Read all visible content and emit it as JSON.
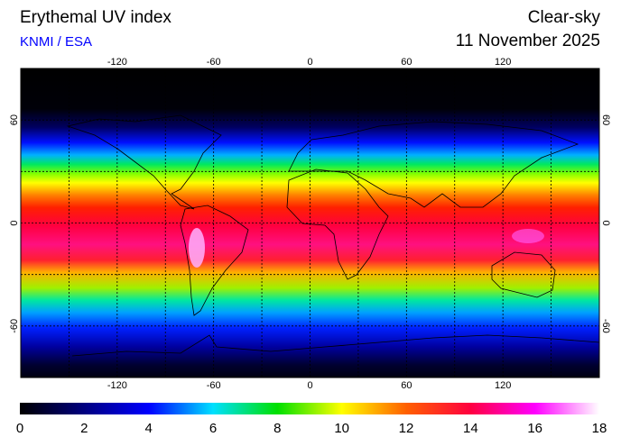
{
  "header": {
    "title": "Erythemal UV index",
    "source": "KNMI / ESA",
    "condition": "Clear-sky",
    "date": "11 November 2025"
  },
  "map": {
    "lonlim": [
      -180,
      180
    ],
    "latlim": [
      -90,
      90
    ],
    "lon_ticks": [
      -120,
      -60,
      0,
      60,
      120
    ],
    "lat_ticks": [
      -60,
      0,
      60
    ],
    "lon_grid": [
      -150,
      -120,
      -90,
      -60,
      -30,
      0,
      30,
      60,
      90,
      120,
      150
    ],
    "lat_grid": [
      -60,
      -30,
      0,
      30,
      60
    ]
  },
  "colorbar": {
    "lim": [
      0,
      18
    ],
    "ticks": [
      0,
      2,
      4,
      6,
      8,
      10,
      12,
      14,
      16,
      18
    ],
    "colors": [
      "#000000",
      "#000080",
      "#0000ff",
      "#00e0ff",
      "#00e000",
      "#ffff00",
      "#ff6000",
      "#ff0040",
      "#ff00ff",
      "#ffffff"
    ]
  }
}
